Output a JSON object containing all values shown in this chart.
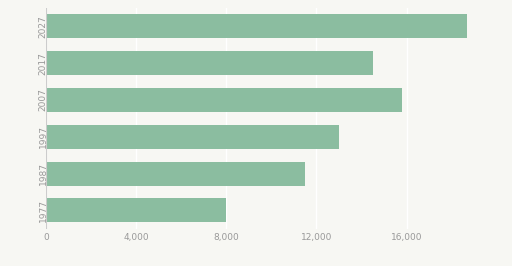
{
  "years": [
    "2027",
    "2017",
    "2007",
    "1997",
    "1987",
    "1977"
  ],
  "values": [
    18700,
    14500,
    15800,
    13000,
    11500,
    8000
  ],
  "bar_color": "#8bbda0",
  "background_color": "#f7f7f3",
  "xlim": [
    0,
    20000
  ],
  "xticks": [
    0,
    4000,
    8000,
    12000,
    16000
  ],
  "tick_label_color": "#999999",
  "grid_color": "#ffffff",
  "bar_height": 0.65,
  "figsize": [
    5.12,
    2.66
  ],
  "dpi": 100
}
